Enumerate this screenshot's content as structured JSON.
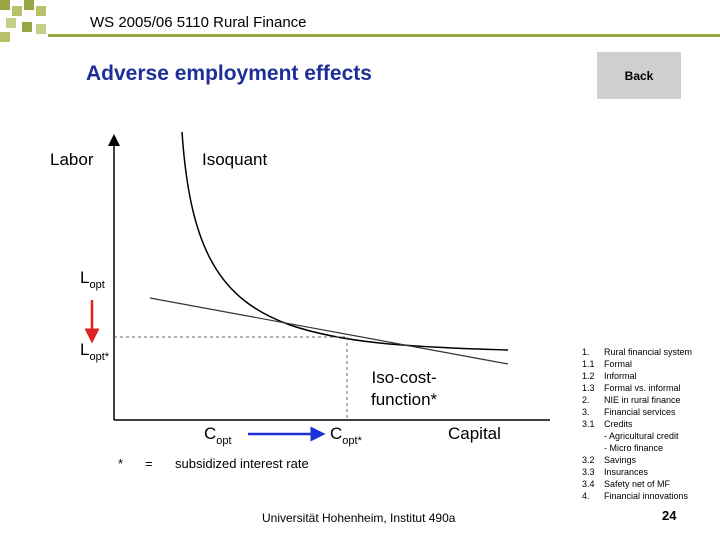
{
  "header": {
    "course": "WS 2005/06 5110 Rural Finance"
  },
  "title": "Adverse employment effects",
  "back_button": {
    "label": "Back"
  },
  "diagram": {
    "y_axis_label": "Labor",
    "isoquant_label": "Isoquant",
    "l_opt": {
      "main": "L",
      "sub": "opt"
    },
    "l_opt_star": {
      "main": "L",
      "sub": "opt*"
    },
    "iso_cost_label": {
      "line1": "Iso-cost-",
      "line2": "function*"
    },
    "c_opt": {
      "main": "C",
      "sub": "opt"
    },
    "c_opt_star": {
      "main": "C",
      "sub": "opt*"
    },
    "x_axis_label": "Capital"
  },
  "note": {
    "star": "*",
    "equals": "=",
    "text": "subsidized interest rate"
  },
  "toc": [
    {
      "num": "1.",
      "label": "Rural financial system"
    },
    {
      "num": "1.1",
      "label": "Formal"
    },
    {
      "num": "1.2",
      "label": "Informal"
    },
    {
      "num": "1.3",
      "label": "Formal vs. informal"
    },
    {
      "num": "2.",
      "label": "NIE in rural finance"
    },
    {
      "num": "3.",
      "label": "Financial services"
    },
    {
      "num": "3.1",
      "label": "Credits"
    },
    {
      "num": "",
      "label": "- Agricultural credit"
    },
    {
      "num": "",
      "label": "- Micro finance"
    },
    {
      "num": "3.2",
      "label": "Savings"
    },
    {
      "num": "3.3",
      "label": "Insurances"
    },
    {
      "num": "3.4",
      "label": "Safety net of MF"
    },
    {
      "num": "4.",
      "label": "Financial innovations"
    }
  ],
  "footer": "Universität Hohenheim, Institut 490a",
  "page_number": "24",
  "colors": {
    "title": "#1e2f9a",
    "accent_green": "#9aa644",
    "arrow_red": "#dd2222",
    "arrow_blue": "#1d2fd6"
  }
}
